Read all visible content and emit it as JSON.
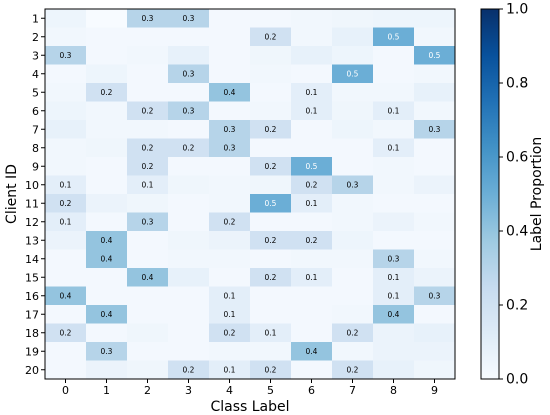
{
  "chart_data": {
    "type": "heatmap",
    "xlabel": "Class Label",
    "ylabel": "Client ID",
    "colorbar_label": "Label Proportion",
    "x_categories": [
      "0",
      "1",
      "2",
      "3",
      "4",
      "5",
      "6",
      "7",
      "8",
      "9"
    ],
    "y_categories": [
      "1",
      "2",
      "3",
      "4",
      "5",
      "6",
      "7",
      "8",
      "9",
      "10",
      "11",
      "12",
      "13",
      "14",
      "15",
      "16",
      "17",
      "18",
      "19",
      "20"
    ],
    "colorbar_range": [
      0.0,
      1.0
    ],
    "colorbar_ticks": [
      "0.0",
      "0.2",
      "0.4",
      "0.6",
      "0.8",
      "1.0"
    ],
    "colormap": "Blues",
    "colormap_low": "#f7fbff",
    "colormap_high": "#08306b",
    "values": [
      [
        0.05,
        0.0,
        0.3,
        0.3,
        0.02,
        0.02,
        0.03,
        0.04,
        0.05,
        0.05
      ],
      [
        0.03,
        0.02,
        0.02,
        0.02,
        0.02,
        0.2,
        0.03,
        0.08,
        0.5,
        0.03
      ],
      [
        0.3,
        0.02,
        0.03,
        0.08,
        0.02,
        0.04,
        0.08,
        0.05,
        0.02,
        0.5
      ],
      [
        0.02,
        0.05,
        0.02,
        0.3,
        0.02,
        0.03,
        0.02,
        0.5,
        0.02,
        0.03
      ],
      [
        0.03,
        0.2,
        0.02,
        0.02,
        0.4,
        0.02,
        0.1,
        0.03,
        0.03,
        0.08
      ],
      [
        0.05,
        0.03,
        0.2,
        0.3,
        0.02,
        0.03,
        0.1,
        0.04,
        0.1,
        0.03
      ],
      [
        0.08,
        0.03,
        0.03,
        0.02,
        0.3,
        0.2,
        0.02,
        0.05,
        0.03,
        0.3
      ],
      [
        0.03,
        0.04,
        0.2,
        0.2,
        0.3,
        0.02,
        0.02,
        0.02,
        0.1,
        0.02
      ],
      [
        0.03,
        0.02,
        0.2,
        0.02,
        0.02,
        0.2,
        0.5,
        0.02,
        0.03,
        0.02
      ],
      [
        0.1,
        0.02,
        0.1,
        0.04,
        0.03,
        0.04,
        0.2,
        0.3,
        0.03,
        0.06
      ],
      [
        0.2,
        0.06,
        0.04,
        0.02,
        0.03,
        0.5,
        0.1,
        0.03,
        0.02,
        0.02
      ],
      [
        0.1,
        0.02,
        0.3,
        0.02,
        0.2,
        0.02,
        0.02,
        0.03,
        0.06,
        0.03
      ],
      [
        0.06,
        0.4,
        0.02,
        0.04,
        0.06,
        0.2,
        0.2,
        0.05,
        0.02,
        0.02
      ],
      [
        0.02,
        0.4,
        0.02,
        0.03,
        0.03,
        0.02,
        0.03,
        0.03,
        0.3,
        0.03
      ],
      [
        0.02,
        0.02,
        0.4,
        0.08,
        0.02,
        0.2,
        0.1,
        0.02,
        0.1,
        0.06
      ],
      [
        0.4,
        0.02,
        0.02,
        0.02,
        0.1,
        0.02,
        0.02,
        0.02,
        0.1,
        0.3
      ],
      [
        0.02,
        0.4,
        0.02,
        0.02,
        0.1,
        0.02,
        0.02,
        0.03,
        0.4,
        0.02
      ],
      [
        0.2,
        0.02,
        0.04,
        0.02,
        0.2,
        0.1,
        0.02,
        0.2,
        0.06,
        0.08
      ],
      [
        0.02,
        0.3,
        0.02,
        0.02,
        0.03,
        0.03,
        0.4,
        0.03,
        0.06,
        0.06
      ],
      [
        0.02,
        0.06,
        0.04,
        0.2,
        0.1,
        0.2,
        0.02,
        0.2,
        0.08,
        0.04
      ]
    ],
    "labels": [
      [
        "",
        "",
        "0.3",
        "0.3",
        "",
        "",
        "",
        "",
        "",
        ""
      ],
      [
        "",
        "",
        "",
        "",
        "",
        "0.2",
        "",
        "",
        "0.5",
        ""
      ],
      [
        "0.3",
        "",
        "",
        "",
        "",
        "",
        "",
        "",
        "",
        "0.5"
      ],
      [
        "",
        "",
        "",
        "0.3",
        "",
        "",
        "",
        "0.5",
        "",
        ""
      ],
      [
        "",
        "0.2",
        "",
        "",
        "0.4",
        "",
        "0.1",
        "",
        "",
        ""
      ],
      [
        "",
        "",
        "0.2",
        "0.3",
        "",
        "",
        "0.1",
        "",
        "0.1",
        ""
      ],
      [
        "",
        "",
        "",
        "",
        "0.3",
        "0.2",
        "",
        "",
        "",
        "0.3"
      ],
      [
        "",
        "",
        "0.2",
        "0.2",
        "0.3",
        "",
        "",
        "",
        "0.1",
        ""
      ],
      [
        "",
        "",
        "0.2",
        "",
        "",
        "0.2",
        "0.5",
        "",
        "",
        ""
      ],
      [
        "0.1",
        "",
        "0.1",
        "",
        "",
        "",
        "0.2",
        "0.3",
        "",
        ""
      ],
      [
        "0.2",
        "",
        "",
        "",
        "",
        "0.5",
        "0.1",
        "",
        "",
        ""
      ],
      [
        "0.1",
        "",
        "0.3",
        "",
        "0.2",
        "",
        "",
        "",
        "",
        ""
      ],
      [
        "",
        "0.4",
        "",
        "",
        "",
        "0.2",
        "0.2",
        "",
        "",
        ""
      ],
      [
        "",
        "0.4",
        "",
        "",
        "",
        "",
        "",
        "",
        "0.3",
        ""
      ],
      [
        "",
        "",
        "0.4",
        "",
        "",
        "0.2",
        "0.1",
        "",
        "0.1",
        ""
      ],
      [
        "0.4",
        "",
        "",
        "",
        "0.1",
        "",
        "",
        "",
        "0.1",
        "0.3"
      ],
      [
        "",
        "0.4",
        "",
        "",
        "0.1",
        "",
        "",
        "",
        "0.4",
        ""
      ],
      [
        "0.2",
        "",
        "",
        "",
        "0.2",
        "0.1",
        "",
        "0.2",
        "",
        ""
      ],
      [
        "",
        "0.3",
        "",
        "",
        "",
        "",
        "0.4",
        "",
        "",
        ""
      ],
      [
        "",
        "",
        "",
        "0.2",
        "0.1",
        "0.2",
        "",
        "0.2",
        "",
        ""
      ]
    ],
    "grid": false,
    "legend": "colorbar-right"
  }
}
